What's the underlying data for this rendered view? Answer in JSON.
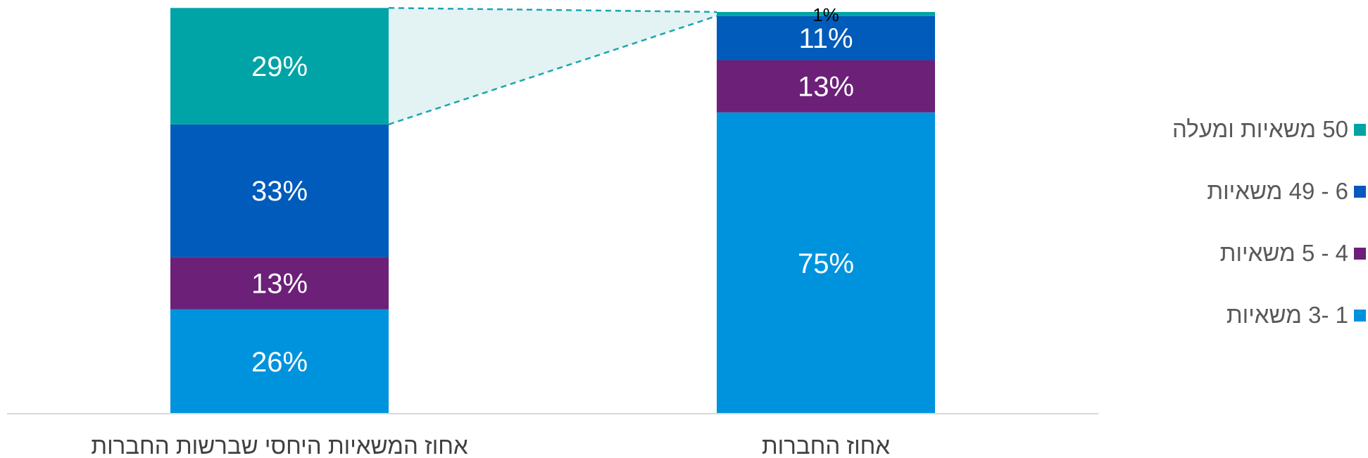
{
  "chart_data": {
    "type": "bar",
    "stacked": true,
    "categories": [
      "אחוז המשאיות היחסי שברשות החברות",
      "אחוז החברות"
    ],
    "series": [
      {
        "name": "1 -3 משאיות",
        "color": "#0093DD",
        "values": [
          26,
          75
        ]
      },
      {
        "name": "4 - 5 משאיות",
        "color": "#6C2078",
        "values": [
          13,
          13
        ]
      },
      {
        "name": "6 - 49 משאיות",
        "color": "#005BBB",
        "values": [
          33,
          11
        ]
      },
      {
        "name": "50 משאיות ומעלה",
        "color": "#00A4A6",
        "values": [
          29,
          1
        ]
      }
    ],
    "data_labels": [
      [
        "26%",
        "75%"
      ],
      [
        "13%",
        "13%"
      ],
      [
        "33%",
        "11%"
      ],
      [
        "29%",
        "1%"
      ]
    ],
    "ylim": [
      0,
      100
    ],
    "legend_position": "right",
    "connector": {
      "style": "dashed",
      "color": "#1AA6B3",
      "fill": "#E3F2F2",
      "between_series": "50 משאיות ומעלה"
    }
  }
}
